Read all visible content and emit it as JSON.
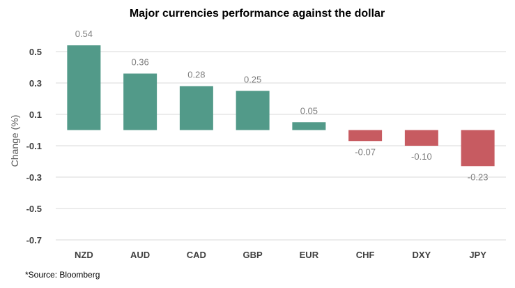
{
  "chart_data": {
    "type": "bar",
    "title": "Major currencies performance against the dollar",
    "ylabel": "Change (%)",
    "xlabel": "",
    "categories": [
      "NZD",
      "AUD",
      "CAD",
      "GBP",
      "EUR",
      "CHF",
      "DXY",
      "JPY"
    ],
    "values": [
      0.54,
      0.36,
      0.28,
      0.25,
      0.05,
      -0.07,
      -0.1,
      -0.23
    ],
    "value_labels": [
      "0.54",
      "0.36",
      "0.28",
      "0.25",
      "0.05",
      "-0.07",
      "-0.10",
      "-0.23"
    ],
    "ylim": [
      -0.7,
      0.5
    ],
    "yticks": [
      0.5,
      0.3,
      0.1,
      -0.1,
      -0.3,
      -0.5,
      -0.7
    ],
    "ytick_labels": [
      "0.5",
      "0.3",
      "0.1",
      "-0.1",
      "-0.3",
      "-0.5",
      "-0.7"
    ],
    "grid": true,
    "legend": "none",
    "colors": {
      "positive": "#529a89",
      "negative": "#c75b61"
    },
    "footnote": "*Source: Bloomberg"
  }
}
